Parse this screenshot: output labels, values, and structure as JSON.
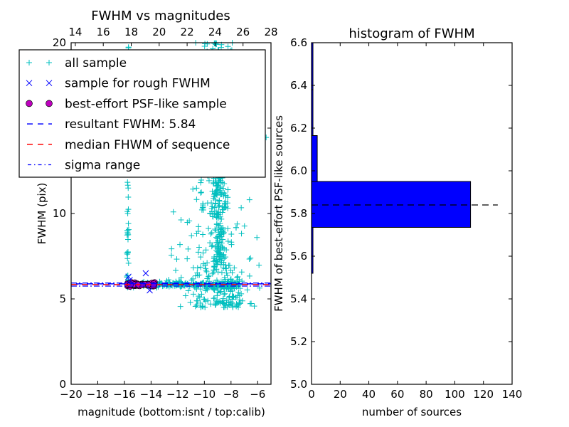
{
  "chart_data": [
    {
      "type": "scatter",
      "title": "FWHM vs magnitudes",
      "xlabel": "magnitude (bottom:isnt / top:calib)",
      "ylabel": "FWHM (pix)",
      "xlim": [
        -20,
        -5
      ],
      "ylim": [
        0,
        20
      ],
      "xticks": [
        "−20",
        "−18",
        "−16",
        "−14",
        "−12",
        "−10",
        "−8",
        "−6"
      ],
      "xtick_values": [
        -20,
        -18,
        -16,
        -14,
        -12,
        -10,
        -8,
        -6
      ],
      "yticks": [
        "0",
        "5",
        "10",
        "15",
        "20"
      ],
      "ytick_values": [
        0,
        5,
        10,
        15,
        20
      ],
      "top_axis": {
        "ticks": [
          "14",
          "16",
          "18",
          "20",
          "22",
          "24",
          "26",
          "28"
        ],
        "values": [
          14,
          16,
          18,
          20,
          22,
          24,
          26,
          28
        ],
        "xlim": [
          13.7,
          28
        ]
      },
      "legend": {
        "placement": "top-left",
        "entries": [
          {
            "label": "all sample",
            "marker": "plus",
            "color": "#00bfbf"
          },
          {
            "label": "sample for rough FWHM",
            "marker": "x",
            "color": "#0000ff"
          },
          {
            "label": "best-effort PSF-like sample",
            "marker": "circle",
            "color": "#bf00bf"
          },
          {
            "label": "resultant FWHM: 5.84",
            "marker": "dashed-line",
            "color": "#0000ff"
          },
          {
            "label": "median FHWM of sequence",
            "marker": "dashed-line",
            "color": "#ff0000"
          },
          {
            "label": "sigma range",
            "marker": "dashdot-line",
            "color": "#0000ff"
          }
        ]
      },
      "reference_lines": {
        "resultant_fwhm": 5.84,
        "median_fwhm": 5.84,
        "sigma_range": [
          5.75,
          5.93
        ]
      },
      "series": [
        {
          "name": "all sample",
          "color": "#00bfbf",
          "clusters": [
            {
              "desc": "vertical streak",
              "x": [
                -15.8,
                -15.6
              ],
              "y": [
                5.8,
                20
              ]
            },
            {
              "desc": "horizontal sequence",
              "x": [
                -15.8,
                -6.5
              ],
              "y": [
                5.6,
                6.1
              ]
            },
            {
              "desc": "faint branch",
              "x": [
                -12.5,
                -7.5
              ],
              "y": [
                4.5,
                20
              ]
            }
          ]
        },
        {
          "name": "sample for rough FWHM",
          "color": "#0000ff",
          "points": [
            [
              -15.7,
              6.3
            ],
            [
              -14.4,
              6.5
            ],
            [
              -15.6,
              6.1
            ],
            [
              -14.1,
              5.5
            ]
          ]
        },
        {
          "name": "best-effort PSF-like sample",
          "color": "#bf00bf",
          "x_range": [
            -15.8,
            -13.7
          ],
          "y_range": [
            5.75,
            5.95
          ]
        }
      ]
    },
    {
      "type": "bar",
      "orientation": "horizontal",
      "title": "histogram of FWHM",
      "xlabel": "number of sources",
      "ylabel": "FWHM of best-effort PSF-like sources",
      "xlim": [
        0,
        140
      ],
      "ylim": [
        5.0,
        6.6
      ],
      "xticks": [
        "0",
        "20",
        "40",
        "60",
        "80",
        "100",
        "120",
        "140"
      ],
      "xtick_values": [
        0,
        20,
        40,
        60,
        80,
        100,
        120,
        140
      ],
      "yticks": [
        "5.0",
        "5.2",
        "5.4",
        "5.6",
        "5.8",
        "6.0",
        "6.2",
        "6.4",
        "6.6"
      ],
      "ytick_values": [
        5.0,
        5.2,
        5.4,
        5.6,
        5.8,
        6.0,
        6.2,
        6.4,
        6.6
      ],
      "bins": [
        {
          "from": 5.52,
          "to": 5.735,
          "count": 1
        },
        {
          "from": 5.735,
          "to": 5.95,
          "count": 111
        },
        {
          "from": 5.95,
          "to": 6.165,
          "count": 4
        },
        {
          "from": 6.165,
          "to": 6.38,
          "count": 1
        },
        {
          "from": 6.38,
          "to": 6.6,
          "count": 1
        }
      ],
      "bar_color": "#0000ff",
      "reference_line": {
        "y": 5.84,
        "x_extent": [
          0,
          130
        ],
        "style": "dashed",
        "color": "#000000"
      }
    }
  ]
}
